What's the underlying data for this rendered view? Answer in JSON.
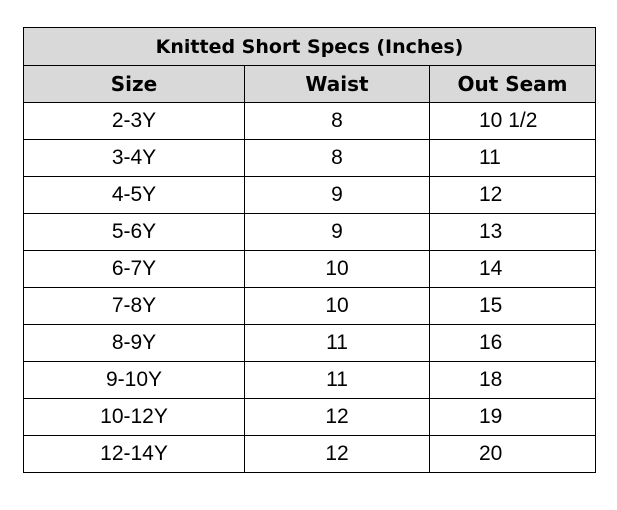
{
  "table": {
    "title": "Knitted Short Specs (Inches)",
    "headers": [
      "Size",
      "Waist",
      "Out Seam"
    ],
    "rows": [
      [
        "2-3Y",
        "8",
        "10 1/2"
      ],
      [
        "3-4Y",
        "8",
        "11"
      ],
      [
        "4-5Y",
        "9",
        "12"
      ],
      [
        "5-6Y",
        "9",
        "13"
      ],
      [
        "6-7Y",
        "10",
        "14"
      ],
      [
        "7-8Y",
        "10",
        "15"
      ],
      [
        "8-9Y",
        "11",
        "16"
      ],
      [
        "9-10Y",
        "11",
        "18"
      ],
      [
        "10-12Y",
        "12",
        "19"
      ],
      [
        "12-14Y",
        "12",
        "20"
      ]
    ],
    "header_bg": "#d9d9d9"
  }
}
